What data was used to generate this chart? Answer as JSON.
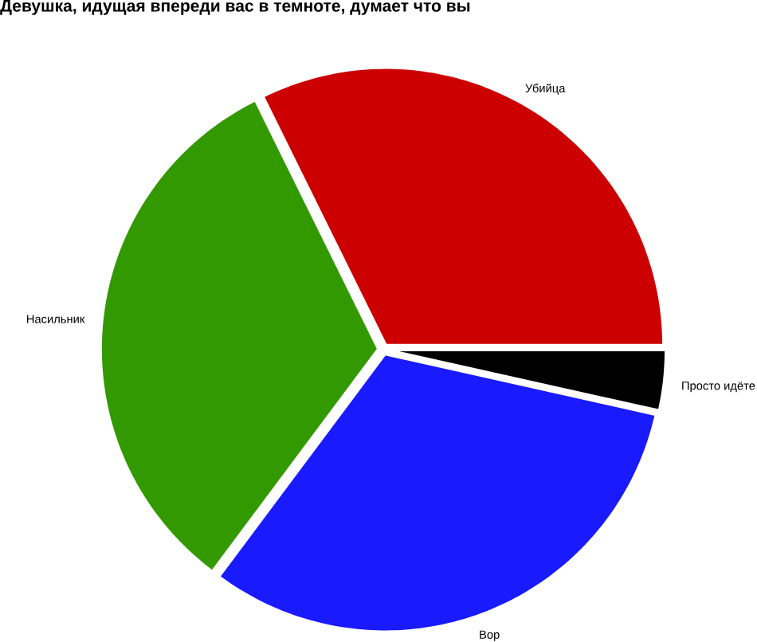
{
  "chart_data": {
    "type": "pie",
    "title": "Девушка, идущая впереди вас в темноте, думает что вы",
    "categories": [
      "Убийца",
      "Насильник",
      "Вор",
      "Просто идёте"
    ],
    "values": [
      32.3,
      32.5,
      31.7,
      3.5
    ],
    "colors": [
      "#cc0000",
      "#339900",
      "#1a1aff",
      "#000000"
    ]
  }
}
